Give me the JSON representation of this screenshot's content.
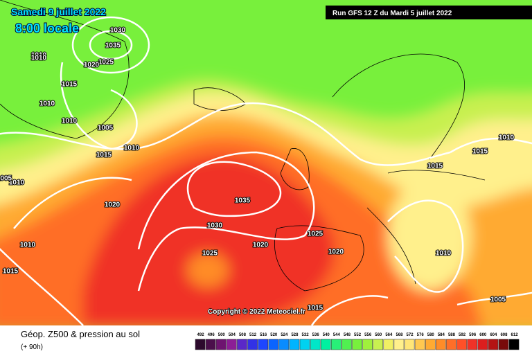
{
  "header": {
    "date": "Samedi 9 juillet 2022",
    "time": "8:00 locale",
    "run": "Run GFS 12 Z du Mardi 5 juillet 2022"
  },
  "copyright": "Copyright © 2022 Meteociel.fr",
  "footer": {
    "title": "Géop. Z500 & pression au sol",
    "lead": "(+ 90h)"
  },
  "legend": [
    {
      "value": 492,
      "color": "#2d0a2d"
    },
    {
      "value": 496,
      "color": "#4b0f4b"
    },
    {
      "value": 500,
      "color": "#6e1470"
    },
    {
      "value": 504,
      "color": "#8c1e96"
    },
    {
      "value": 508,
      "color": "#5a28c8"
    },
    {
      "value": 512,
      "color": "#3232e6"
    },
    {
      "value": 516,
      "color": "#1e46ff"
    },
    {
      "value": 520,
      "color": "#0a64ff"
    },
    {
      "value": 524,
      "color": "#0a8cff"
    },
    {
      "value": 528,
      "color": "#00b4ff"
    },
    {
      "value": 532,
      "color": "#00d2f0"
    },
    {
      "value": 536,
      "color": "#00e6c8"
    },
    {
      "value": 540,
      "color": "#00f0a0"
    },
    {
      "value": 544,
      "color": "#28f078"
    },
    {
      "value": 548,
      "color": "#50f050"
    },
    {
      "value": 552,
      "color": "#78f03c"
    },
    {
      "value": 556,
      "color": "#a0f03c"
    },
    {
      "value": 560,
      "color": "#c8f050"
    },
    {
      "value": 564,
      "color": "#f0f064"
    },
    {
      "value": 568,
      "color": "#fff08c"
    },
    {
      "value": 572,
      "color": "#ffe678"
    },
    {
      "value": 576,
      "color": "#ffc850"
    },
    {
      "value": 580,
      "color": "#ffaa32"
    },
    {
      "value": 584,
      "color": "#ff8c28"
    },
    {
      "value": 588,
      "color": "#ff6e28"
    },
    {
      "value": 592,
      "color": "#ff5028"
    },
    {
      "value": 596,
      "color": "#f03228"
    },
    {
      "value": 600,
      "color": "#dc1e1e"
    },
    {
      "value": 604,
      "color": "#b41414"
    },
    {
      "value": 608,
      "color": "#780a0a"
    },
    {
      "value": 612,
      "color": "#000000"
    }
  ],
  "isobar_labels": [
    "1030",
    "1035",
    "1025",
    "1020",
    "1010",
    "1010",
    "1015",
    "1010",
    "1010",
    "1005",
    "1015",
    "1010",
    "1020",
    "1010",
    "1010",
    "1035",
    "1030",
    "1025",
    "1020",
    "1025",
    "1020",
    "1015",
    "1015",
    "1015",
    "1010",
    "1005",
    "1015",
    "1005",
    "1010"
  ]
}
